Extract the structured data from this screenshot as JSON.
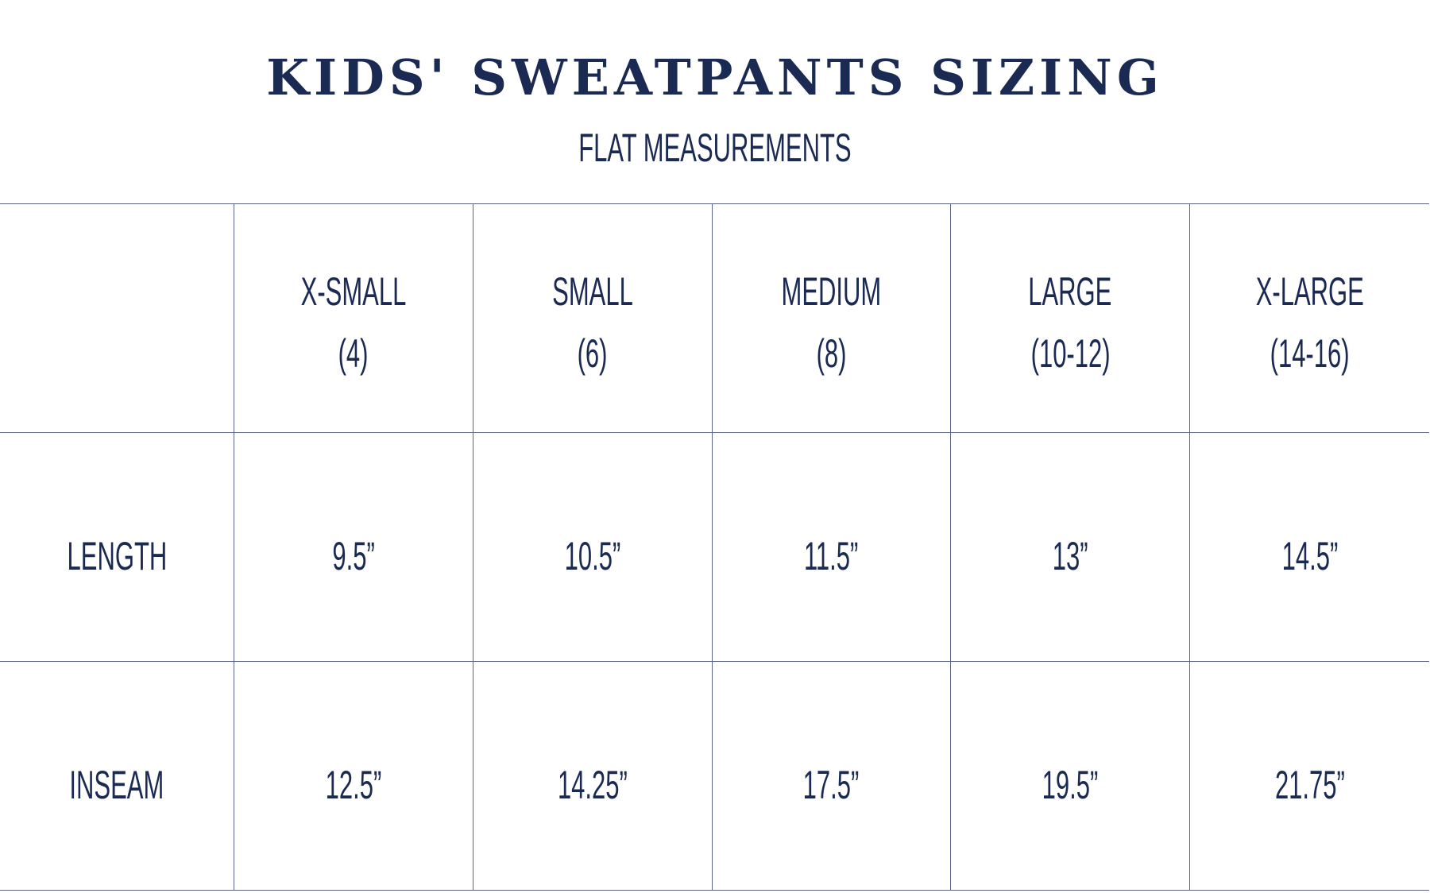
{
  "title": "KIDS' SWEATPANTS SIZING",
  "subtitle": "FLAT MEASUREMENTS",
  "text_color": "#1b2a52",
  "table": {
    "columns": [
      {
        "size": "X-SMALL",
        "range": "(4)"
      },
      {
        "size": "SMALL",
        "range": "(6)"
      },
      {
        "size": "MEDIUM",
        "range": "(8)"
      },
      {
        "size": "LARGE",
        "range": "(10-12)"
      },
      {
        "size": "X-LARGE",
        "range": "(14-16)"
      }
    ],
    "rows": [
      {
        "label": "LENGTH",
        "values": [
          "9.5”",
          "10.5”",
          "11.5”",
          "13”",
          "14.5”"
        ]
      },
      {
        "label": "INSEAM",
        "values": [
          "12.5”",
          "14.25”",
          "17.5”",
          "19.5”",
          "21.75”"
        ]
      }
    ]
  }
}
